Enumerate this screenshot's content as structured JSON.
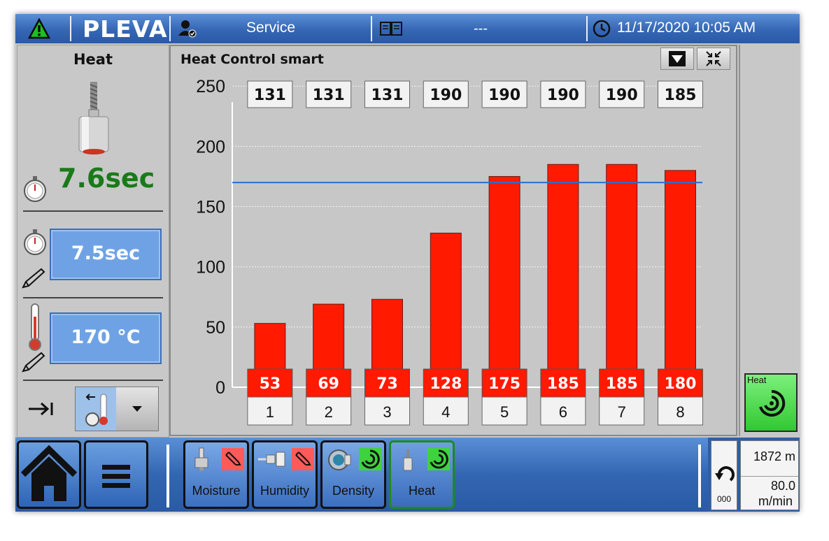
{
  "topbar": {
    "logo": "PLEVA",
    "role": "Service",
    "status": "---",
    "datetime": "11/17/2020 10:05 AM"
  },
  "left": {
    "title": "Heat",
    "actual_time": "7.6sec",
    "set_time": "7.5sec",
    "set_temp": "170 °C",
    "actual_time_color": "#1a7a1a"
  },
  "chart_title": "Heat Control smart",
  "chart_data": {
    "type": "bar",
    "categories": [
      "1",
      "2",
      "3",
      "4",
      "5",
      "6",
      "7",
      "8"
    ],
    "values": [
      53,
      69,
      73,
      128,
      175,
      185,
      185,
      180
    ],
    "top_labels": [
      "131",
      "131",
      "131",
      "190",
      "190",
      "190",
      "190",
      "185"
    ],
    "ylim": [
      0,
      260
    ],
    "yticks": [
      0,
      50,
      100,
      150,
      200,
      250
    ],
    "setpoint_line": 170,
    "bar_color": "#ff1a00",
    "line_color": "#2a6fc8",
    "grid": true
  },
  "right": {
    "heat_label": "Heat"
  },
  "bottom": {
    "tabs": [
      "Moisture",
      "Humidity",
      "Density",
      "Heat"
    ],
    "undo_value": "000",
    "length": "1872 m",
    "speed": "80.0",
    "speed_unit": "m/min"
  },
  "colors": {
    "accent_blue": "#3566b4",
    "ok_green": "#32c832",
    "alarm_red": "#ff4a4a"
  }
}
